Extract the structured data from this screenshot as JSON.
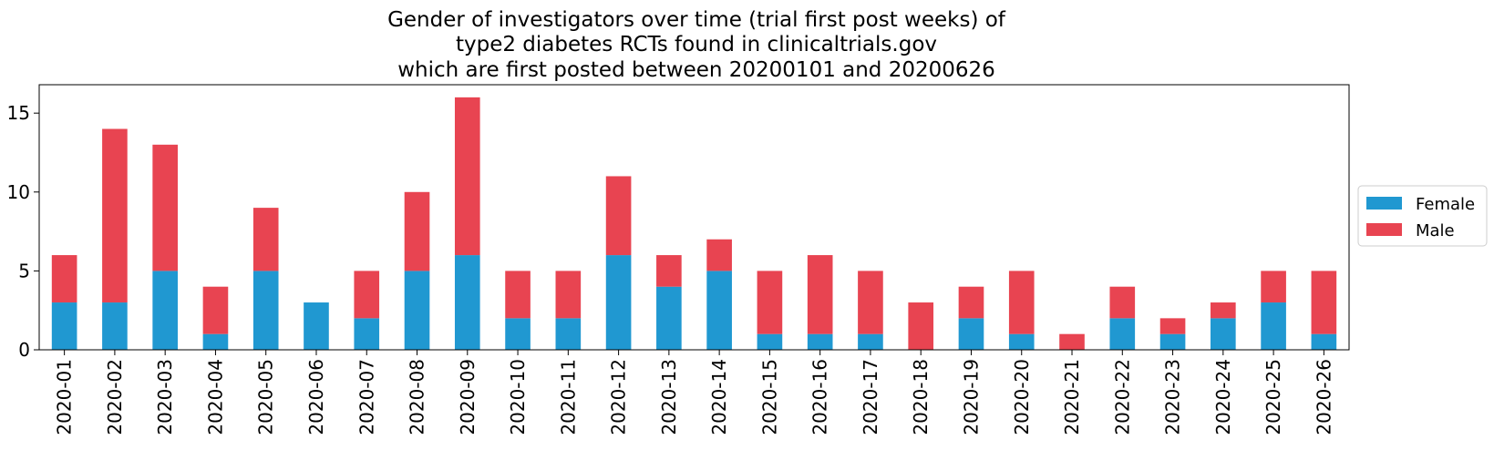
{
  "chart_data": {
    "type": "bar",
    "stacked": true,
    "title_lines": [
      "Gender of investigators over time (trial first post weeks) of",
      "type2 diabetes RCTs found in clinicaltrials.gov",
      "which are first posted between 20200101 and 20200626"
    ],
    "xlabel": "",
    "ylabel": "",
    "ylim": [
      0,
      16.8
    ],
    "yticks": [
      0,
      5,
      10,
      15
    ],
    "grid": false,
    "legend_position": "right-center",
    "categories": [
      "2020-01",
      "2020-02",
      "2020-03",
      "2020-04",
      "2020-05",
      "2020-06",
      "2020-07",
      "2020-08",
      "2020-09",
      "2020-10",
      "2020-11",
      "2020-12",
      "2020-13",
      "2020-14",
      "2020-15",
      "2020-16",
      "2020-17",
      "2020-18",
      "2020-19",
      "2020-20",
      "2020-21",
      "2020-22",
      "2020-23",
      "2020-24",
      "2020-25",
      "2020-26"
    ],
    "series": [
      {
        "name": "Female",
        "color": "#2098d1",
        "values": [
          3,
          3,
          5,
          1,
          5,
          3,
          2,
          5,
          6,
          2,
          2,
          6,
          4,
          5,
          1,
          1,
          1,
          0,
          2,
          1,
          0,
          2,
          1,
          2,
          3,
          1
        ]
      },
      {
        "name": "Male",
        "color": "#e84451",
        "values": [
          3,
          11,
          8,
          3,
          4,
          0,
          3,
          5,
          10,
          3,
          3,
          5,
          2,
          2,
          4,
          5,
          4,
          3,
          2,
          4,
          1,
          2,
          1,
          1,
          2,
          4
        ]
      }
    ]
  }
}
